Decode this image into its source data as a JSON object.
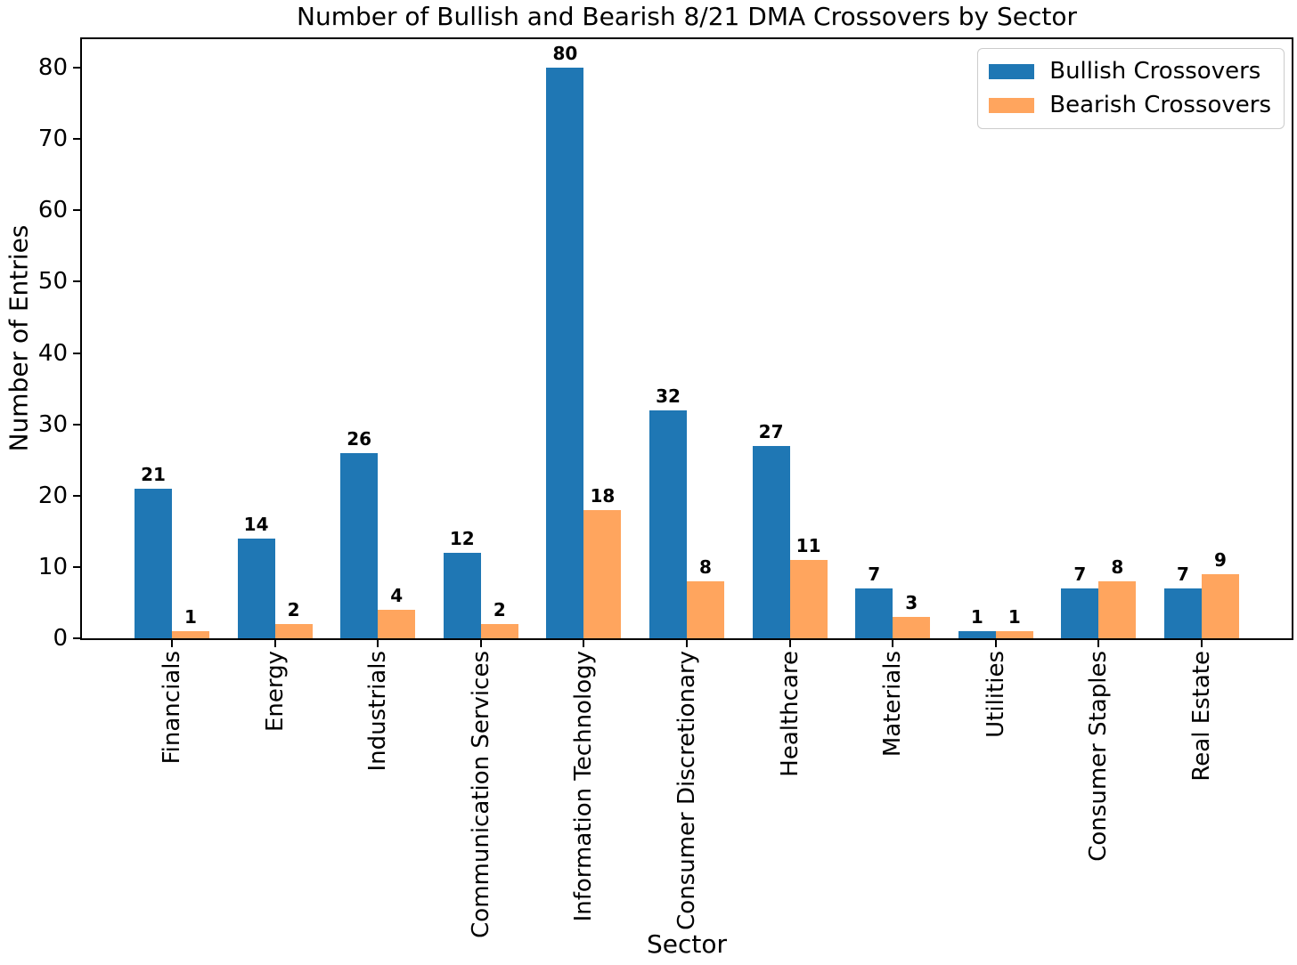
{
  "chart_data": {
    "type": "bar",
    "title": "Number of Bullish and Bearish 8/21 DMA Crossovers by Sector",
    "xlabel": "Sector",
    "ylabel": "Number of Entries",
    "categories": [
      "Financials",
      "Energy",
      "Industrials",
      "Communication Services",
      "Information Technology",
      "Consumer Discretionary",
      "Healthcare",
      "Materials",
      "Utilities",
      "Consumer Staples",
      "Real Estate"
    ],
    "series": [
      {
        "name": "Bullish Crossovers",
        "color": "#1f77b4",
        "values": [
          21,
          14,
          26,
          12,
          80,
          32,
          27,
          7,
          1,
          7,
          7
        ]
      },
      {
        "name": "Bearish Crossovers",
        "color": "#ffa55e",
        "values": [
          1,
          2,
          4,
          2,
          18,
          8,
          11,
          3,
          1,
          8,
          9
        ]
      }
    ],
    "ylim": [
      0,
      84
    ],
    "yticks": [
      0,
      10,
      20,
      30,
      40,
      50,
      60,
      70,
      80
    ],
    "bar_value_labels": true,
    "legend_position": "upper right",
    "grid": false,
    "axis_color": "#000000",
    "background_color": "#ffffff"
  }
}
